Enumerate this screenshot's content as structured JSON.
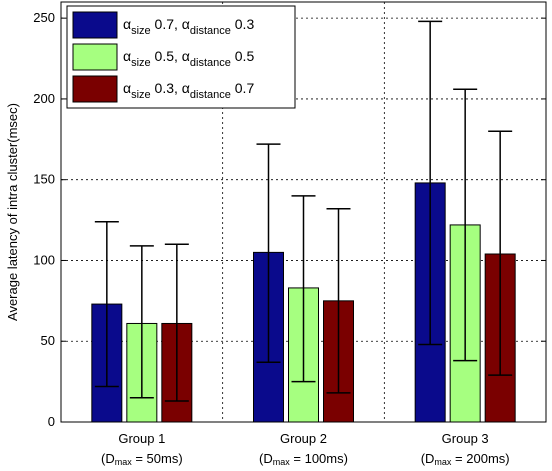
{
  "chart_data": {
    "type": "bar",
    "title": "",
    "xlabel": "",
    "ylabel": "Average latency of intra cluster(msec)",
    "ylim": [
      0,
      260
    ],
    "yticks": [
      0,
      50,
      100,
      150,
      200,
      250
    ],
    "grid": true,
    "legend_position": "top-left",
    "categories": [
      {
        "name": "Group 1",
        "sub_prefix": "(D",
        "sub_subscript": "max",
        "sub_suffix": " = 50ms)"
      },
      {
        "name": "Group 2",
        "sub_prefix": "(D",
        "sub_subscript": "max",
        "sub_suffix": " = 100ms)"
      },
      {
        "name": "Group 3",
        "sub_prefix": "(D",
        "sub_subscript": "max",
        "sub_suffix": " = 200ms)"
      }
    ],
    "series": [
      {
        "name": "αsize 0.7, αdistance 0.3",
        "legend_parts": {
          "a": "α",
          "s1": "size",
          "v1": " 0.7, ",
          "s2": "distance",
          "v2": " 0.3"
        },
        "color": "#0a0a8c",
        "values": [
          73,
          105,
          148
        ],
        "err_low": [
          22,
          37,
          48
        ],
        "err_high": [
          124,
          172,
          248
        ]
      },
      {
        "name": "αsize 0.5, αdistance 0.5",
        "legend_parts": {
          "a": "α",
          "s1": "size",
          "v1": " 0.5, ",
          "s2": "distance",
          "v2": " 0.5"
        },
        "color": "#a6ff80",
        "values": [
          61,
          83,
          122
        ],
        "err_low": [
          15,
          25,
          38
        ],
        "err_high": [
          109,
          140,
          206
        ]
      },
      {
        "name": "αsize 0.3, αdistance 0.7",
        "legend_parts": {
          "a": "α",
          "s1": "size",
          "v1": " 0.3, ",
          "s2": "distance",
          "v2": " 0.7"
        },
        "color": "#7a0000",
        "values": [
          61,
          75,
          104
        ],
        "err_low": [
          13,
          18,
          29
        ],
        "err_high": [
          110,
          132,
          180
        ]
      }
    ]
  }
}
